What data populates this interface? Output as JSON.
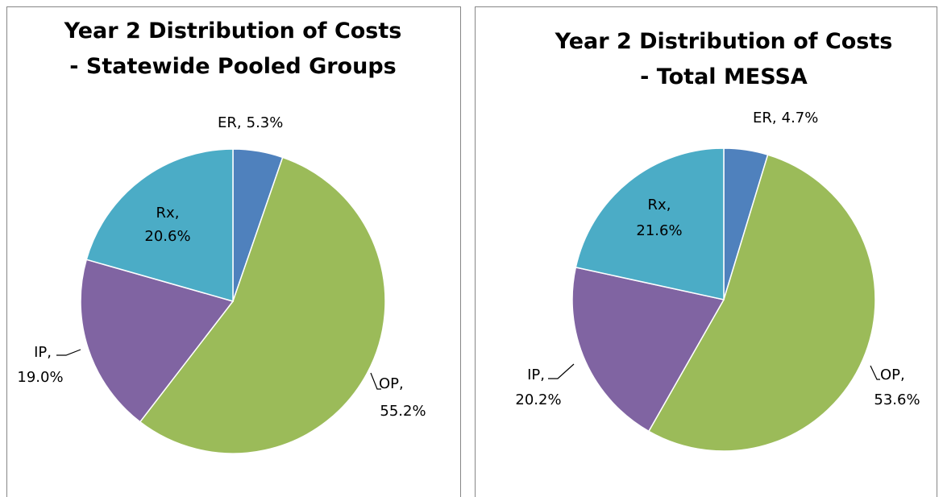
{
  "chart_data": [
    {
      "type": "pie",
      "title": [
        "Year 2 Distribution of Costs",
        "- Statewide Pooled Groups"
      ],
      "categories": [
        "ER",
        "OP",
        "IP",
        "Rx"
      ],
      "values": [
        5.3,
        55.2,
        19.0,
        20.6
      ],
      "value_labels": [
        "5.3%",
        "55.2%",
        "19.0%",
        "20.6%"
      ],
      "label_separator": ",",
      "colors": [
        "#4f81bd",
        "#9bbb59",
        "#8064a2",
        "#4bacc6"
      ]
    },
    {
      "type": "pie",
      "title": [
        "Year 2 Distribution of Costs",
        "- Total MESSA"
      ],
      "categories": [
        "ER",
        "OP",
        "IP",
        "Rx"
      ],
      "values": [
        4.7,
        53.6,
        20.2,
        21.6
      ],
      "value_labels": [
        "4.7%",
        "53.6%",
        "20.2%",
        "21.6%"
      ],
      "label_separator": ",",
      "colors": [
        "#4f81bd",
        "#9bbb59",
        "#8064a2",
        "#4bacc6"
      ]
    }
  ]
}
